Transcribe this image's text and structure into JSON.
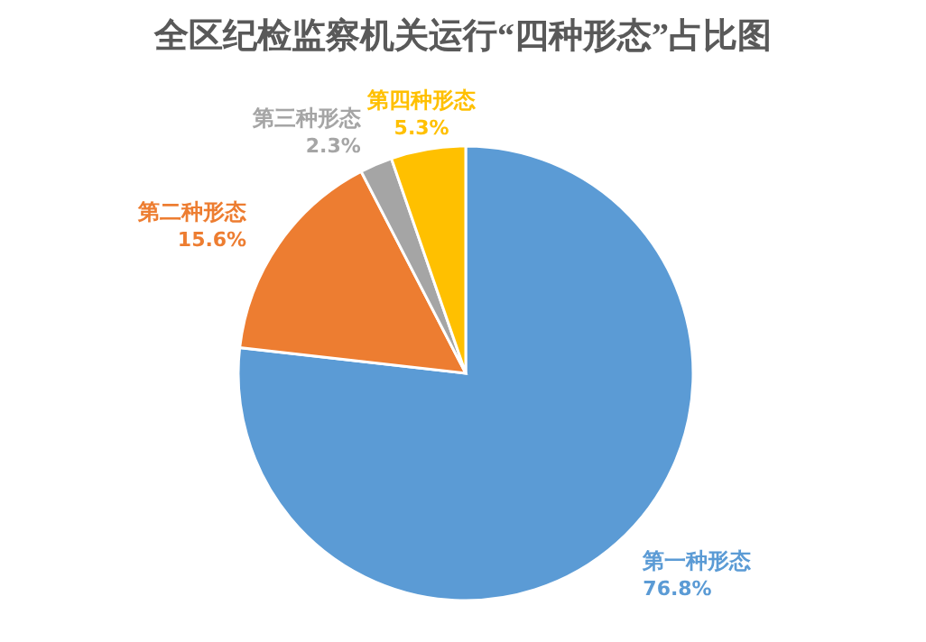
{
  "chart_data": {
    "type": "pie",
    "title": "全区纪检监察机关运行“四种形态”占比图",
    "categories": [
      "第一种形态",
      "第二种形态",
      "第三种形态",
      "第四种形态"
    ],
    "values": [
      76.8,
      15.6,
      2.3,
      5.3
    ],
    "value_labels": [
      "76.8%",
      "15.6%",
      "2.3%",
      "5.3%"
    ],
    "colors": [
      "#5b9bd5",
      "#ed7d31",
      "#a5a5a5",
      "#ffc000"
    ],
    "legend": false
  }
}
